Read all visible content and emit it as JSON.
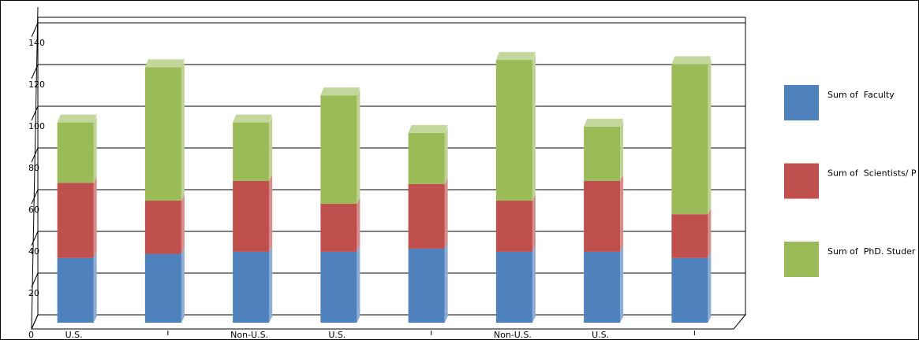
{
  "chart_data": {
    "type": "bar3d_stacked",
    "categories": [
      "U.S.",
      null,
      "Non-U.S.",
      "U.S.",
      null,
      "Non-U.S.",
      "U.S.",
      null
    ],
    "series": [
      {
        "name": "Sum of  Faculty",
        "color": "#4f81bd",
        "values": [
          31,
          33,
          34,
          34,
          35.5,
          34,
          34,
          31
        ]
      },
      {
        "name": "Sum of  Scientists/ P",
        "color": "#c0504d",
        "values": [
          36,
          25.5,
          34,
          23,
          31,
          24.5,
          34,
          21
        ]
      },
      {
        "name": "Sum of  PhD. Studer",
        "color": "#9bbb59",
        "values": [
          29,
          64,
          28,
          52,
          24.5,
          67.5,
          26,
          72
        ]
      }
    ],
    "ylim": [
      0,
      140
    ],
    "yticks": [
      0,
      20,
      40,
      60,
      80,
      100,
      120,
      140
    ],
    "grid": true
  }
}
